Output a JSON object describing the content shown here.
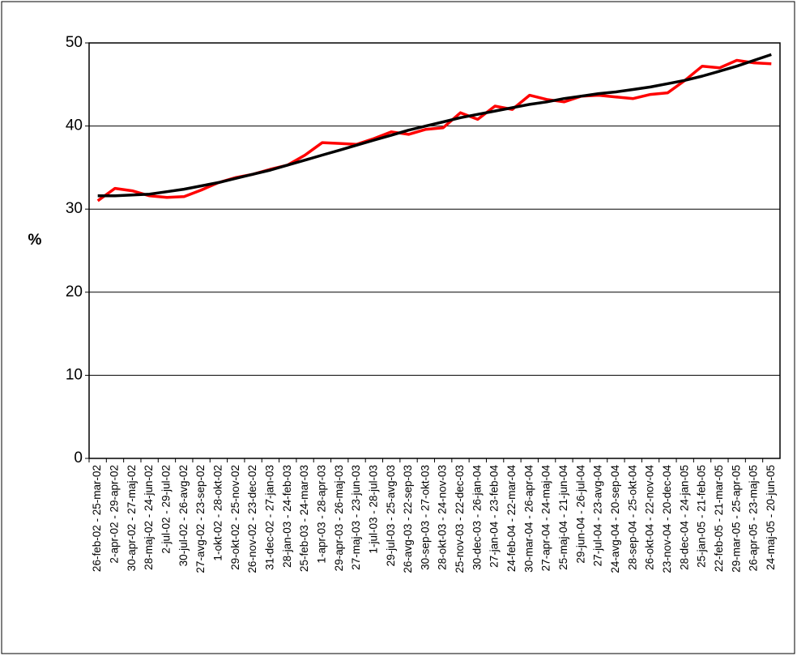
{
  "chart_data": {
    "type": "line",
    "y_label": "%",
    "categories": [
      "26-feb-02 - 25-mar-02",
      "2-apr-02 - 29-apr-02",
      "30-apr-02 - 27-maj-02",
      "28-maj-02 - 24-jun-02",
      "2-jul-02 - 29-jul-02",
      "30-jul-02 - 26-avg-02",
      "27-avg-02 - 23-sep-02",
      "1-okt-02 - 28-okt-02",
      "29-okt-02 - 25-nov-02",
      "26-nov-02 - 23-dec-02",
      "31-dec-02 - 27-jan-03",
      "28-jan-03 - 24-feb-03",
      "25-feb-03 - 24-mar-03",
      "1-apr-03 - 28-apr-03",
      "29-apr-03 - 26-maj-03",
      "27-maj-03 - 23-jun-03",
      "1-jul-03 - 28-jul-03",
      "29-jul-03 - 25-avg-03",
      "26-avg-03 - 22-sep-03",
      "30-sep-03 - 27-okt-03",
      "28-okt-03 - 24-nov-03",
      "25-nov-03 - 22-dec-03",
      "30-dec-03 - 26-jan-04",
      "27-jan-04 - 23-feb-04",
      "24-feb-04 - 22-mar-04",
      "30-mar-04 - 26-apr-04",
      "27-apr-04 - 24-maj-04",
      "25-maj-04 - 21-jun-04",
      "29-jun-04 - 26-jul-04",
      "27-jul-04 - 23-avg-04",
      "24-avg-04 - 20-sep-04",
      "28-sep-04 - 25-okt-04",
      "26-okt-04 - 22-nov-04",
      "23-nov-04 - 20-dec-04",
      "28-dec-04 - 24-jan-05",
      "25-jan-05 - 21-feb-05",
      "22-feb-05 - 21-mar-05",
      "29-mar-05 - 25-apr-05",
      "26-apr-05 - 23-maj-05",
      "24-maj-05 - 20-jun-05"
    ],
    "series": [
      {
        "color": "#ff0000",
        "values": [
          31.0,
          32.5,
          32.2,
          31.6,
          31.4,
          31.5,
          32.3,
          33.2,
          33.8,
          34.2,
          34.8,
          35.3,
          36.5,
          38.0,
          37.9,
          37.8,
          38.5,
          39.3,
          39.0,
          39.6,
          39.8,
          41.6,
          40.8,
          42.4,
          42.0,
          43.7,
          43.2,
          42.9,
          43.6,
          43.7,
          43.5,
          43.3,
          43.8,
          44.0,
          45.5,
          47.2,
          47.0,
          47.9,
          47.6,
          47.5
        ]
      },
      {
        "color": "#000000",
        "values": [
          31.6,
          31.6,
          31.7,
          31.8,
          32.1,
          32.4,
          32.8,
          33.2,
          33.7,
          34.2,
          34.7,
          35.3,
          35.9,
          36.5,
          37.1,
          37.7,
          38.3,
          38.9,
          39.5,
          40.0,
          40.5,
          41.0,
          41.4,
          41.8,
          42.2,
          42.6,
          42.9,
          43.3,
          43.6,
          43.9,
          44.1,
          44.4,
          44.7,
          45.1,
          45.5,
          46.0,
          46.6,
          47.2,
          47.9,
          48.6
        ]
      }
    ],
    "ylim": [
      0,
      50
    ],
    "yticks": [
      0,
      10,
      20,
      30,
      40,
      50
    ],
    "grid": true
  }
}
